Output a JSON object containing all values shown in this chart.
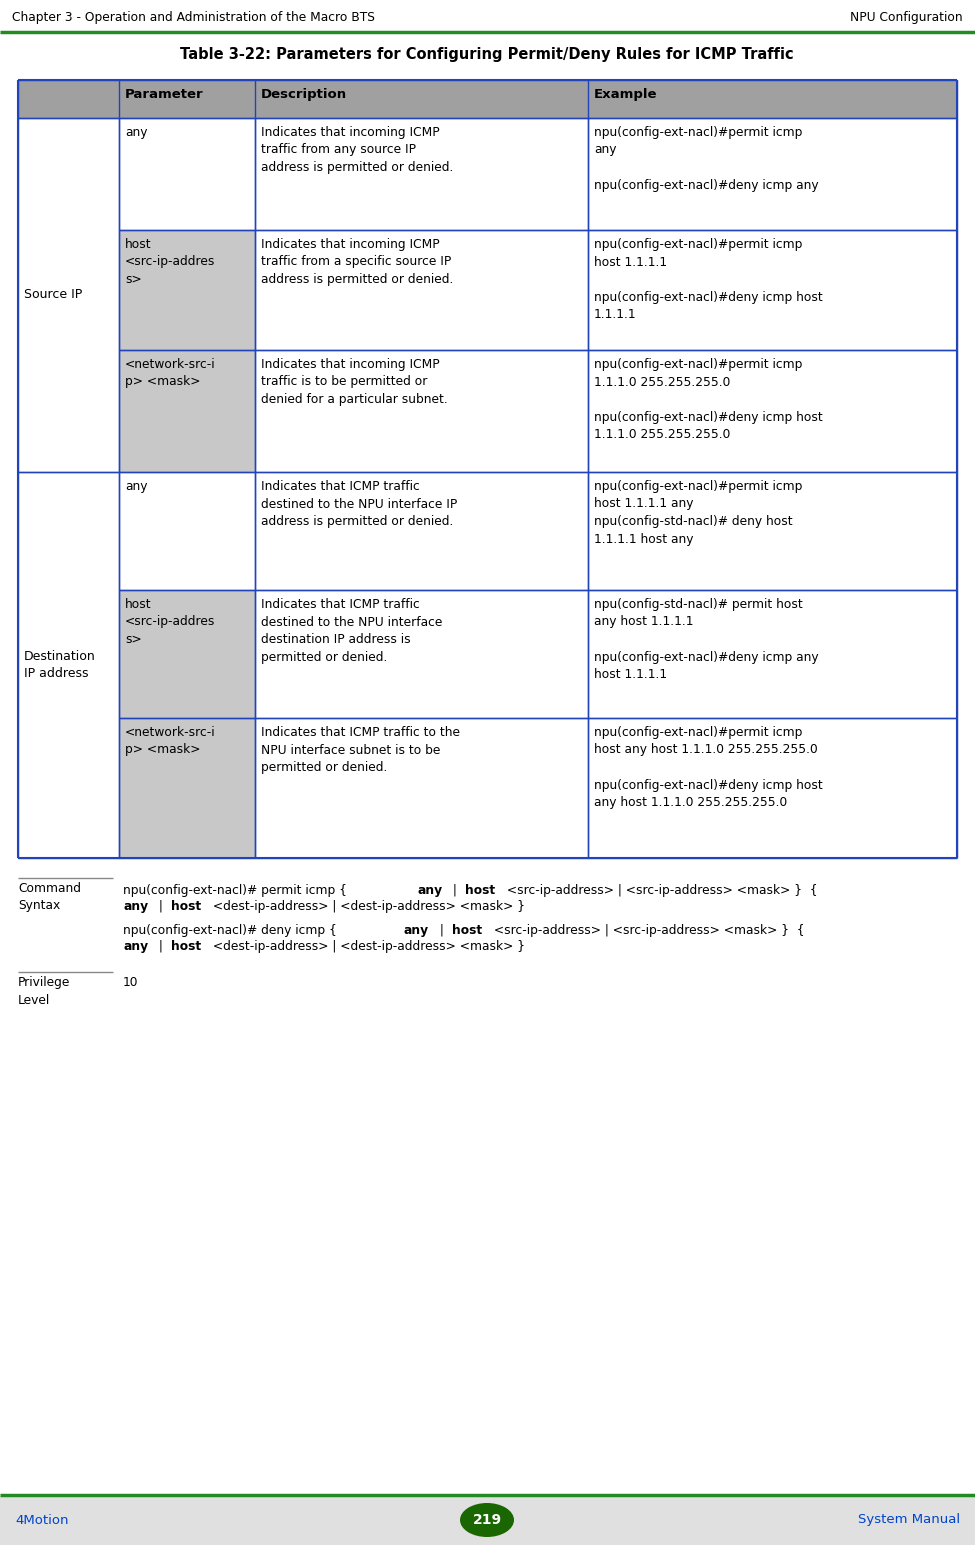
{
  "page_title_left": "Chapter 3 - Operation and Administration of the Macro BTS",
  "page_title_right": "NPU Configuration",
  "table_title": "Table 3-22: Parameters for Configuring Permit/Deny Rules for ICMP Traffic",
  "header_cols": [
    "",
    "Parameter",
    "Description",
    "Example"
  ],
  "rows": [
    {
      "col0": "Source IP",
      "col1": "any",
      "col2": "Indicates that incoming ICMP\ntraffic from any source IP\naddress is permitted or denied.",
      "col3": "npu(config-ext-nacl)#permit icmp\nany\n\nnpu(config-ext-nacl)#deny icmp any",
      "group_start": true,
      "group_size": 3,
      "group_label": "Source IP",
      "col1_bg": "white"
    },
    {
      "col0": "",
      "col1": "host\n<src-ip-addres\ns>",
      "col2": "Indicates that incoming ICMP\ntraffic from a specific source IP\naddress is permitted or denied.",
      "col3": "npu(config-ext-nacl)#permit icmp\nhost 1.1.1.1\n\nnpu(config-ext-nacl)#deny icmp host\n1.1.1.1",
      "group_start": false,
      "col1_bg": "gray"
    },
    {
      "col0": "",
      "col1": "<network-src-i\np> <mask>",
      "col2": "Indicates that incoming ICMP\ntraffic is to be permitted or\ndenied for a particular subnet.",
      "col3": "npu(config-ext-nacl)#permit icmp\n1.1.1.0 255.255.255.0\n\nnpu(config-ext-nacl)#deny icmp host\n1.1.1.0 255.255.255.0",
      "group_start": false,
      "col1_bg": "gray"
    },
    {
      "col0": "Destination\nIP address",
      "col1": "any",
      "col2": "Indicates that ICMP traffic\ndestined to the NPU interface IP\naddress is permitted or denied.",
      "col3": "npu(config-ext-nacl)#permit icmp\nhost 1.1.1.1 any\nnpu(config-std-nacl)# deny host\n1.1.1.1 host any",
      "group_start": true,
      "group_size": 3,
      "group_label": "Destination\nIP address",
      "col1_bg": "white"
    },
    {
      "col0": "",
      "col1": "host\n<src-ip-addres\ns>",
      "col2": "Indicates that ICMP traffic\ndestined to the NPU interface\ndestination IP address is\npermitted or denied.",
      "col3": "npu(config-std-nacl)# permit host\nany host 1.1.1.1\n\nnpu(config-ext-nacl)#deny icmp any\nhost 1.1.1.1",
      "group_start": false,
      "col1_bg": "gray"
    },
    {
      "col0": "",
      "col1": "<network-src-i\np> <mask>",
      "col2": "Indicates that ICMP traffic to the\nNPU interface subnet is to be\npermitted or denied.",
      "col3": "npu(config-ext-nacl)#permit icmp\nhost any host 1.1.1.0 255.255.255.0\n\nnpu(config-ext-nacl)#deny icmp host\nany host 1.1.1.0 255.255.255.0",
      "group_start": false,
      "col1_bg": "gray"
    }
  ],
  "cmd_label": "Command\nSyntax",
  "cmd_line1a": "npu(config-ext-nacl)# permit icmp { ",
  "cmd_line1b": "any",
  "cmd_line1c": " | ",
  "cmd_line1d": "host",
  "cmd_line1e": " <src-ip-address> | <src-ip-address> <mask> }  {",
  "cmd_line2a": "any",
  "cmd_line2b": " | ",
  "cmd_line2c": "host",
  "cmd_line2d": " <dest-ip-address> | <dest-ip-address> <mask> }",
  "cmd_line3a": "npu(config-ext-nacl)# deny icmp { ",
  "cmd_line3b": "any",
  "cmd_line3c": " | ",
  "cmd_line3d": "host",
  "cmd_line3e": " <src-ip-address> | <src-ip-address> <mask> }  {",
  "cmd_line4a": "any",
  "cmd_line4b": " | ",
  "cmd_line4c": "host",
  "cmd_line4d": " <dest-ip-address> | <dest-ip-address> <mask> }",
  "priv_label": "Privilege\nLevel",
  "priv_value": "10",
  "footer_left": "4Motion",
  "footer_center": "219",
  "footer_right": "System Manual",
  "header_bg": "#a0a0a0",
  "gray_bg": "#c8c8c8",
  "white_bg": "#ffffff",
  "border_color": "#2244bb",
  "title_color": "#000000",
  "footer_text_color": "#0044cc",
  "page_header_line_color": "#228B22",
  "footer_line_color": "#228B22",
  "page_num_bg": "#1a6600",
  "page_num_text_color": "#ffffff",
  "footer_bg": "#e0e0e0"
}
